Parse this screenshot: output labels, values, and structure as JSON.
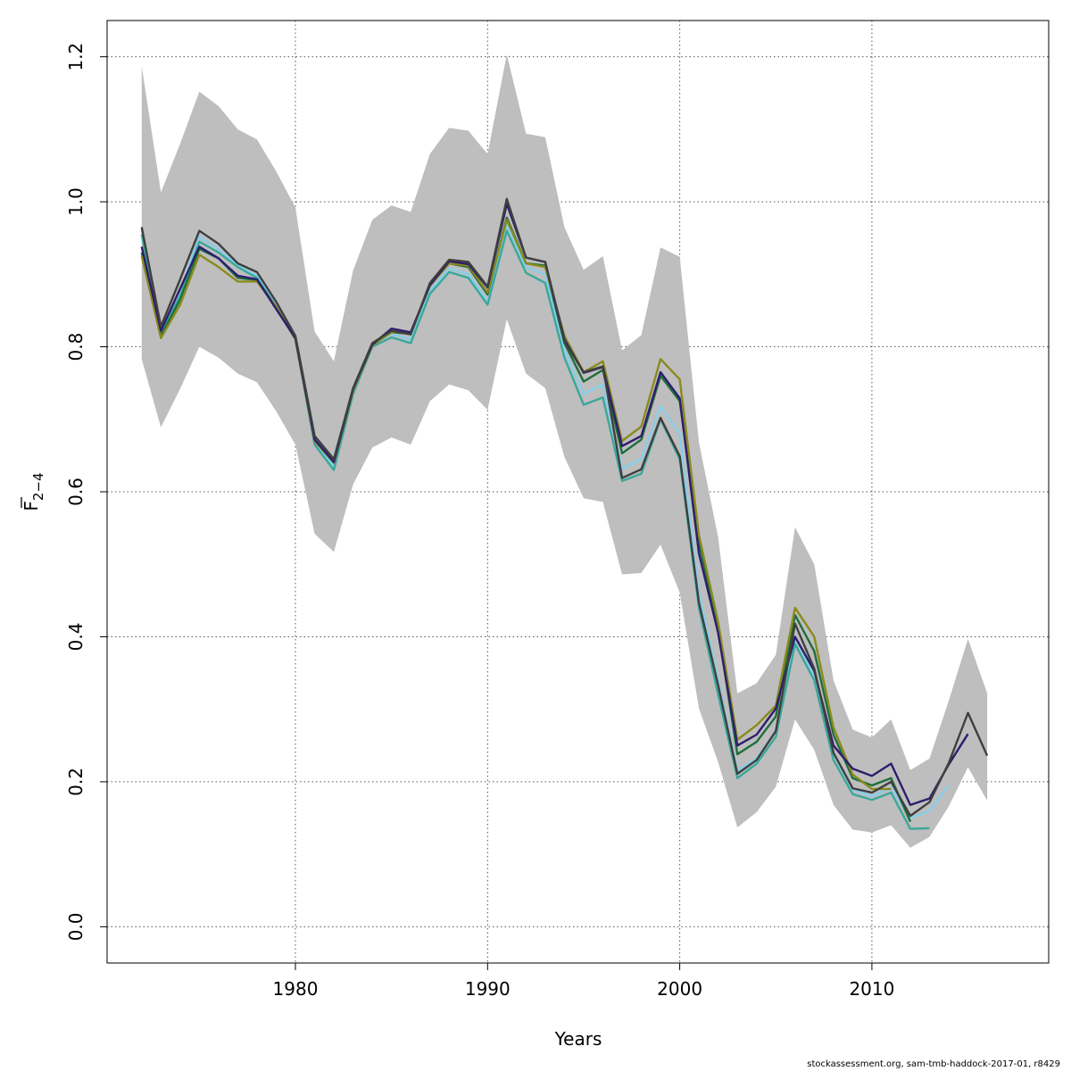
{
  "chart_data": {
    "type": "line",
    "xlabel": "Years",
    "ylabel_main": "F",
    "ylabel_sub": "2−4",
    "xlim": [
      1970.2,
      2019.2
    ],
    "ylim": [
      -0.05,
      1.25
    ],
    "x_ticks": [
      1980,
      1990,
      2000,
      2010
    ],
    "y_ticks": [
      0.0,
      0.2,
      0.4,
      0.6,
      0.8,
      1.0,
      1.2
    ],
    "y_tick_labels": [
      "0.0",
      "0.2",
      "0.4",
      "0.6",
      "0.8",
      "1.0",
      "1.2"
    ],
    "grid": true,
    "band_color": "#bebebe",
    "confidence_band": {
      "x": [
        1972,
        1973,
        1974,
        1975,
        1976,
        1977,
        1978,
        1979,
        1980,
        1981,
        1982,
        1983,
        1984,
        1985,
        1986,
        1987,
        1988,
        1989,
        1990,
        1991,
        1992,
        1993,
        1994,
        1995,
        1996,
        1997,
        1998,
        1999,
        2000,
        2001,
        2002,
        2003,
        2004,
        2005,
        2006,
        2007,
        2008,
        2009,
        2010,
        2011,
        2012,
        2013,
        2014,
        2015,
        2016
      ],
      "upper": [
        1.187,
        1.013,
        1.08,
        1.152,
        1.132,
        1.1,
        1.086,
        1.042,
        0.992,
        0.821,
        0.78,
        0.905,
        0.975,
        0.995,
        0.986,
        1.066,
        1.102,
        1.098,
        1.066,
        1.203,
        1.094,
        1.089,
        0.965,
        0.906,
        0.925,
        0.795,
        0.816,
        0.937,
        0.924,
        0.668,
        0.537,
        0.322,
        0.336,
        0.375,
        0.551,
        0.5,
        0.34,
        0.272,
        0.261,
        0.286,
        0.216,
        0.232,
        0.312,
        0.397,
        0.322
      ],
      "lower": [
        0.783,
        0.689,
        0.742,
        0.8,
        0.785,
        0.763,
        0.751,
        0.711,
        0.665,
        0.542,
        0.517,
        0.61,
        0.661,
        0.675,
        0.665,
        0.725,
        0.748,
        0.74,
        0.713,
        0.838,
        0.763,
        0.743,
        0.648,
        0.591,
        0.586,
        0.486,
        0.488,
        0.527,
        0.461,
        0.301,
        0.227,
        0.137,
        0.158,
        0.193,
        0.286,
        0.244,
        0.168,
        0.134,
        0.13,
        0.14,
        0.109,
        0.124,
        0.166,
        0.22,
        0.174
      ]
    },
    "series": [
      {
        "color": "#3f3f3f",
        "x": [
          1972,
          1973,
          1974,
          1975,
          1976,
          1977,
          1978,
          1979,
          1980,
          1981,
          1982,
          1983,
          1984,
          1985,
          1986,
          1987,
          1988,
          1989,
          1990,
          1991,
          1992,
          1993,
          1994,
          1995,
          1996,
          1997,
          1998,
          1999,
          2000,
          2001,
          2002,
          2003,
          2004,
          2005,
          2006,
          2007,
          2008,
          2009,
          2010,
          2011,
          2012,
          2013,
          2014,
          2015,
          2016
        ],
        "values": [
          0.965,
          0.828,
          0.893,
          0.96,
          0.942,
          0.915,
          0.903,
          0.862,
          0.815,
          0.677,
          0.645,
          0.743,
          0.805,
          0.822,
          0.817,
          0.888,
          0.92,
          0.917,
          0.883,
          1.004,
          0.923,
          0.917,
          0.807,
          0.765,
          0.773,
          0.619,
          0.631,
          0.702,
          0.649,
          0.447,
          0.333,
          0.211,
          0.23,
          0.27,
          0.418,
          0.356,
          0.24,
          0.191,
          0.185,
          0.2,
          0.153,
          0.172,
          0.226,
          0.295,
          0.236
        ]
      },
      {
        "color": "#2e1e6e",
        "x": [
          1972,
          1973,
          1974,
          1975,
          1976,
          1977,
          1978,
          1979,
          1980,
          1981,
          1982,
          1983,
          1984,
          1985,
          1986,
          1987,
          1988,
          1989,
          1990,
          1991,
          1992,
          1993,
          1994,
          1995,
          1996,
          1997,
          1998,
          1999,
          2000,
          2001,
          2002,
          2003,
          2004,
          2005,
          2006,
          2007,
          2008,
          2009,
          2010,
          2011,
          2012,
          2013,
          2014,
          2015
        ],
        "values": [
          0.938,
          0.822,
          0.88,
          0.938,
          0.922,
          0.898,
          0.893,
          0.852,
          0.812,
          0.672,
          0.641,
          0.742,
          0.803,
          0.825,
          0.82,
          0.885,
          0.918,
          0.914,
          0.882,
          0.997,
          0.923,
          0.917,
          0.81,
          0.764,
          0.772,
          0.663,
          0.677,
          0.765,
          0.729,
          0.515,
          0.405,
          0.25,
          0.265,
          0.301,
          0.4,
          0.353,
          0.25,
          0.218,
          0.208,
          0.225,
          0.168,
          0.177,
          0.224,
          0.266
        ]
      },
      {
        "color": "#8a8a1e",
        "x": [
          1972,
          1973,
          1974,
          1975,
          1976,
          1977,
          1978,
          1979,
          1980,
          1981,
          1982,
          1983,
          1984,
          1985,
          1986,
          1987,
          1988,
          1989,
          1990,
          1991,
          1992,
          1993,
          1994,
          1995,
          1996,
          1997,
          1998,
          1999,
          2000,
          2001,
          2002,
          2003,
          2004,
          2005,
          2006,
          2007,
          2008,
          2009,
          2010,
          2011
        ],
        "values": [
          0.925,
          0.812,
          0.858,
          0.927,
          0.91,
          0.89,
          0.89,
          0.855,
          0.81,
          0.67,
          0.64,
          0.74,
          0.802,
          0.82,
          0.82,
          0.884,
          0.915,
          0.912,
          0.875,
          0.975,
          0.915,
          0.91,
          0.815,
          0.765,
          0.78,
          0.67,
          0.69,
          0.783,
          0.755,
          0.54,
          0.42,
          0.258,
          0.278,
          0.305,
          0.44,
          0.4,
          0.275,
          0.21,
          0.19,
          0.19
        ]
      },
      {
        "color": "#1e6e3c",
        "x": [
          1972,
          1973,
          1974,
          1975,
          1976,
          1977,
          1978,
          1979,
          1980,
          1981,
          1982,
          1983,
          1984,
          1985,
          1986,
          1987,
          1988,
          1989,
          1990,
          1991,
          1992,
          1993,
          1994,
          1995,
          1996,
          1997,
          1998,
          1999,
          2000,
          2001,
          2002,
          2003,
          2004,
          2005,
          2006,
          2007,
          2008,
          2009,
          2010,
          2011,
          2012
        ],
        "values": [
          0.93,
          0.815,
          0.865,
          0.935,
          0.922,
          0.895,
          0.892,
          0.855,
          0.812,
          0.67,
          0.64,
          0.74,
          0.803,
          0.82,
          0.818,
          0.885,
          0.915,
          0.91,
          0.872,
          0.978,
          0.915,
          0.912,
          0.805,
          0.752,
          0.768,
          0.653,
          0.672,
          0.76,
          0.725,
          0.53,
          0.41,
          0.238,
          0.255,
          0.29,
          0.43,
          0.38,
          0.265,
          0.205,
          0.195,
          0.205,
          0.145
        ]
      },
      {
        "color": "#3aa89a",
        "x": [
          1972,
          1973,
          1974,
          1975,
          1976,
          1977,
          1978,
          1979,
          1980,
          1981,
          1982,
          1983,
          1984,
          1985,
          1986,
          1987,
          1988,
          1989,
          1990,
          1991,
          1992,
          1993,
          1994,
          1995,
          1996,
          1997,
          1998,
          1999,
          2000,
          2001,
          2002,
          2003,
          2004,
          2005,
          2006,
          2007,
          2008,
          2009,
          2010,
          2011,
          2012,
          2013
        ],
        "values": [
          0.955,
          0.82,
          0.87,
          0.945,
          0.93,
          0.91,
          0.895,
          0.855,
          0.81,
          0.665,
          0.63,
          0.735,
          0.8,
          0.813,
          0.805,
          0.873,
          0.903,
          0.895,
          0.858,
          0.96,
          0.902,
          0.888,
          0.785,
          0.72,
          0.73,
          0.615,
          0.625,
          0.7,
          0.645,
          0.44,
          0.32,
          0.205,
          0.225,
          0.262,
          0.39,
          0.34,
          0.23,
          0.183,
          0.175,
          0.185,
          0.135,
          0.136
        ]
      },
      {
        "color": "#87ceeb",
        "x": [
          1972,
          1973,
          1974,
          1975,
          1976,
          1977,
          1978,
          1979,
          1980,
          1981,
          1982,
          1983,
          1984,
          1985,
          1986,
          1987,
          1988,
          1989,
          1990,
          1991,
          1992,
          1993,
          1994,
          1995,
          1996,
          1997,
          1998,
          1999,
          2000,
          2001,
          2002,
          2003,
          2004,
          2005,
          2006,
          2007,
          2008,
          2009,
          2010,
          2011,
          2012,
          2013,
          2014
        ],
        "values": [
          0.962,
          0.822,
          0.875,
          0.952,
          0.935,
          0.912,
          0.898,
          0.857,
          0.812,
          0.668,
          0.635,
          0.738,
          0.802,
          0.818,
          0.81,
          0.878,
          0.908,
          0.9,
          0.862,
          0.968,
          0.91,
          0.9,
          0.795,
          0.735,
          0.748,
          0.632,
          0.645,
          0.718,
          0.68,
          0.46,
          0.34,
          0.215,
          0.232,
          0.27,
          0.4,
          0.345,
          0.238,
          0.19,
          0.18,
          0.192,
          0.15,
          0.16,
          0.195
        ]
      }
    ]
  },
  "footer_text": "stockassessment.org, sam-tmb-haddock-2017-01, r8429"
}
